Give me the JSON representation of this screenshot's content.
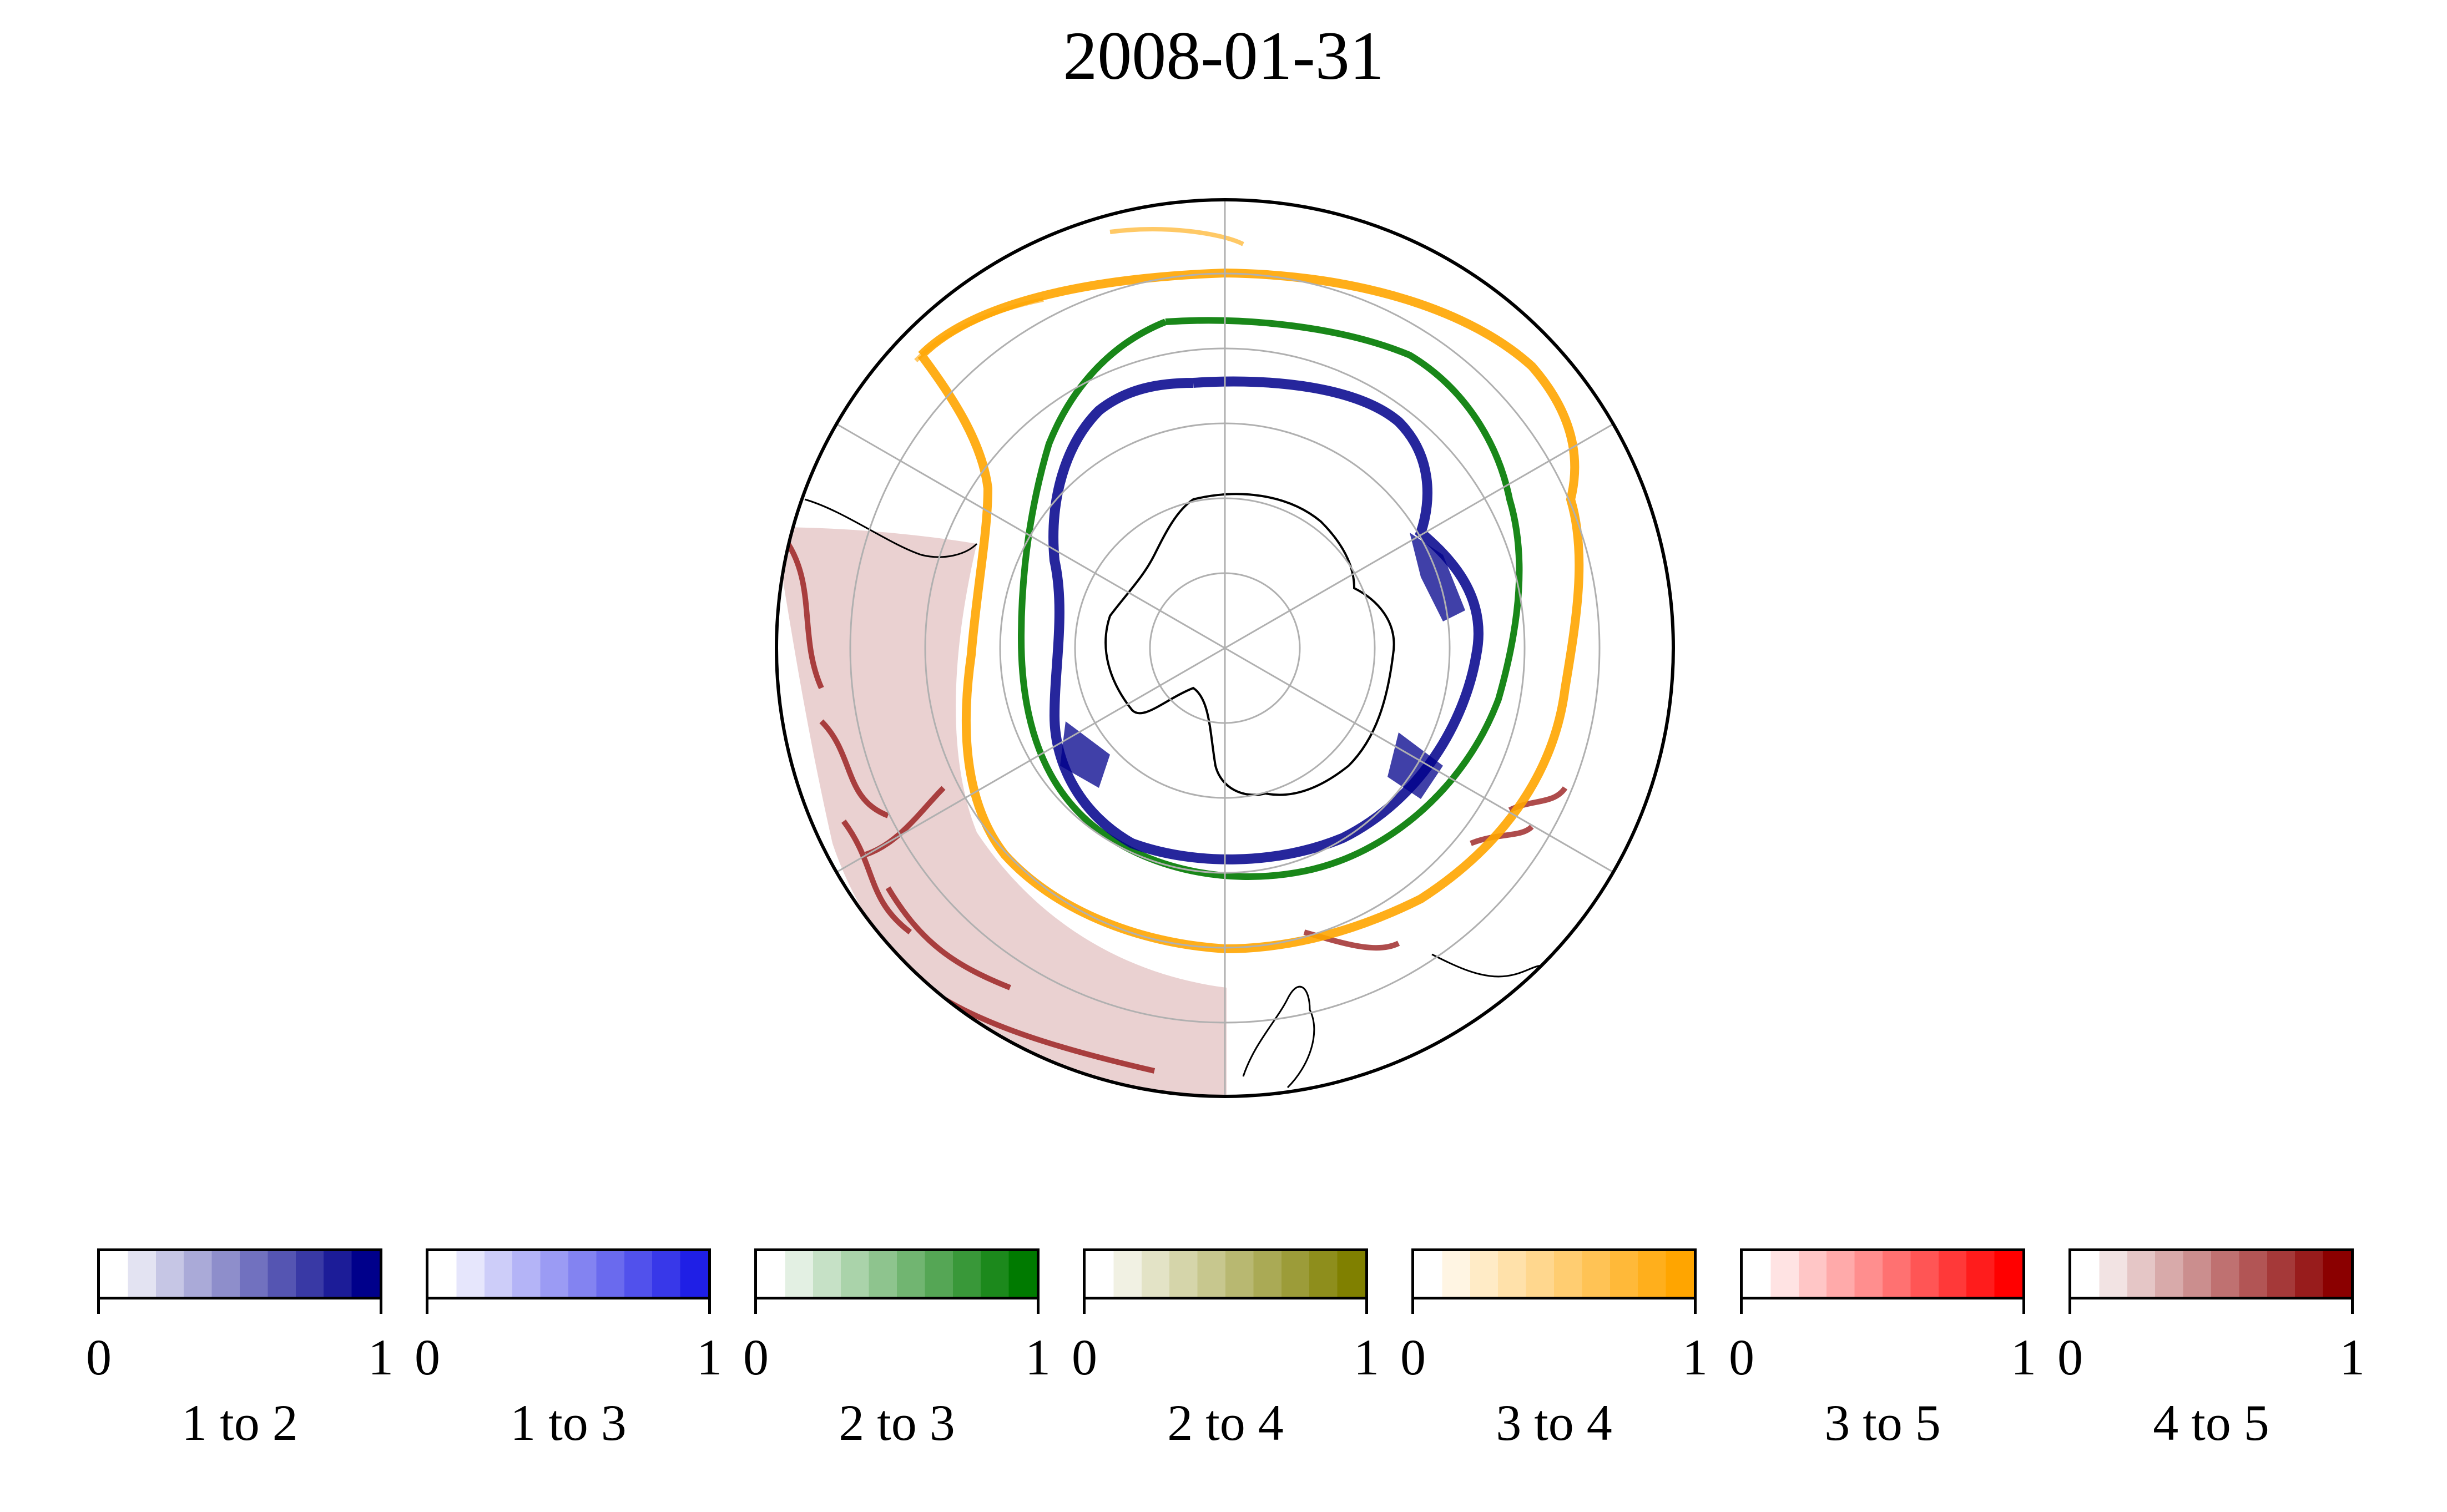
{
  "title": "2008-01-31",
  "colorbars": [
    {
      "label": "1 to 2",
      "min": "0",
      "max": "1",
      "color_from": "#ffffff",
      "color_to": "#00008b"
    },
    {
      "label": "1 to 3",
      "min": "0",
      "max": "1",
      "color_from": "#ffffff",
      "color_to": "#1f1fe6"
    },
    {
      "label": "2 to 3",
      "min": "0",
      "max": "1",
      "color_from": "#ffffff",
      "color_to": "#007a00"
    },
    {
      "label": "2 to 4",
      "min": "0",
      "max": "1",
      "color_from": "#ffffff",
      "color_to": "#808000"
    },
    {
      "label": "3 to 4",
      "min": "0",
      "max": "1",
      "color_from": "#ffffff",
      "color_to": "#ffa500"
    },
    {
      "label": "3 to 5",
      "min": "0",
      "max": "1",
      "color_from": "#ffffff",
      "color_to": "#ff0000"
    },
    {
      "label": "4 to 5",
      "min": "0",
      "max": "1",
      "color_from": "#ffffff",
      "color_to": "#8b0000"
    }
  ],
  "map": {
    "projection": "south-polar-stereographic",
    "gridlines": true
  }
}
